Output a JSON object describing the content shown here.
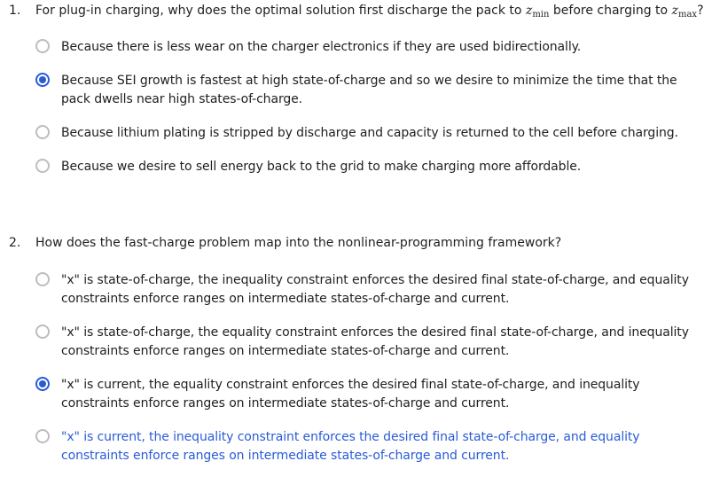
{
  "questions": [
    {
      "number": "1.",
      "prompt_before": "For plug-in charging, why does the optimal solution first discharge the pack to",
      "var1": "z",
      "var1_sub": "min",
      "prompt_middle": "before charging to",
      "var2": "z",
      "var2_sub": "max",
      "prompt_after": "?",
      "options": [
        {
          "label": "Because there is less wear on the charger electronics if they are used bidirectionally.",
          "selected": false
        },
        {
          "label": "Because SEI growth is fastest at high state-of-charge and so we desire to minimize the time that the pack dwells near high states-of-charge.",
          "selected": true
        },
        {
          "label": "Because lithium plating is stripped by discharge and capacity is returned to the cell before charging.",
          "selected": false
        },
        {
          "label": "Because we desire to sell energy back to the grid to make charging more affordable.",
          "selected": false
        }
      ]
    },
    {
      "number": "2.",
      "prompt": "How does the fast-charge problem map into the nonlinear-programming framework?",
      "options": [
        {
          "label": "\"x\" is state-of-charge, the inequality constraint enforces the desired final state-of-charge, and equality constraints enforce ranges on intermediate states-of-charge and current.",
          "selected": false
        },
        {
          "label": "\"x\" is state-of-charge, the equality constraint enforces the desired final state-of-charge, and inequality constraints enforce ranges on intermediate states-of-charge and current.",
          "selected": false
        },
        {
          "label": "\"x\" is current, the equality constraint enforces the desired final state-of-charge, and inequality constraints enforce ranges on intermediate states-of-charge and current.",
          "selected": true
        },
        {
          "label": "\"x\" is current, the inequality constraint enforces the desired final state-of-charge, and equality constraints enforce ranges on intermediate states-of-charge and current.",
          "selected": false,
          "hovered": true
        }
      ]
    }
  ],
  "colors": {
    "accent": "#2a5bd7",
    "text": "#1f1f1f",
    "radio_border": "#bdbdbd"
  }
}
